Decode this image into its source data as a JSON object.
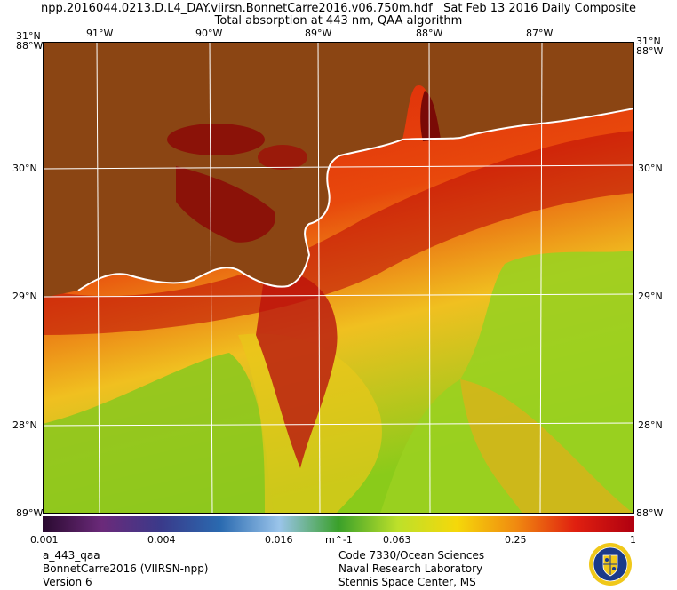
{
  "header": {
    "filename": "npp.2016044.0213.D.L4_DAY.viirsn.BonnetCarre2016.v06.750m.hdf",
    "date": "Sat Feb 13 2016 Daily Composite",
    "product": "Total absorption at 443 nm, QAA algorithm"
  },
  "map": {
    "lon_ticks": [
      "91°W",
      "90°W",
      "89°W",
      "88°W",
      "87°W"
    ],
    "lat_ticks": [
      "31°N",
      "30°N",
      "29°N",
      "28°N"
    ],
    "corner_labels": {
      "top_left_a": "31°N",
      "top_left_b": "88°W",
      "top_right_a": "31°N",
      "top_right_b": "88°W",
      "bottom_left": "89°W",
      "bottom_right": "88°W"
    },
    "colors": {
      "land": "#8B4513",
      "coast": "#ffffff",
      "grid": "#ffffff"
    }
  },
  "colorbar": {
    "labels": [
      "0.001",
      "0.004",
      "0.016",
      "m^-1",
      "0.063",
      "0.25",
      "1"
    ],
    "stops": [
      "#2a0a30",
      "#6b2a7a",
      "#3a3a8a",
      "#2a6ab0",
      "#9ac4ea",
      "#3aa02a",
      "#bde02a",
      "#f5d80a",
      "#f08a10",
      "#e02010",
      "#b00010"
    ]
  },
  "footer": {
    "left": [
      "a_443_qaa",
      "BonnetCarre2016 (VIIRSN-npp)",
      "Version 6"
    ],
    "right": [
      "Code 7330/Ocean Sciences",
      "Naval Research Laboratory",
      "Stennis Space Center, MS"
    ]
  }
}
